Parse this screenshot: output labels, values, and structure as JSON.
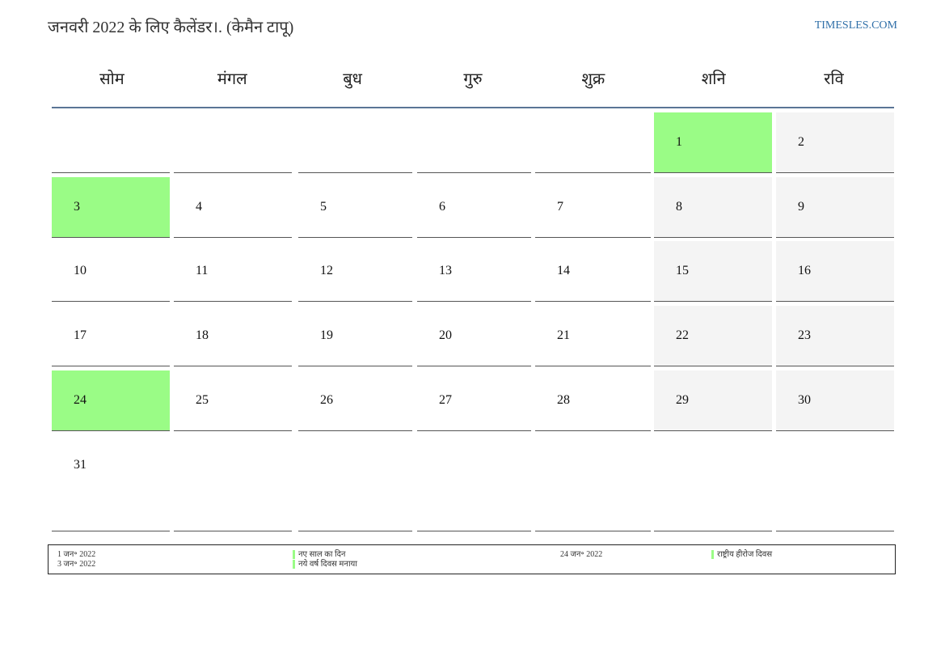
{
  "header": {
    "title": "जनवरी 2022 के लिए कैलेंडर।. (केमैन टापू)",
    "site": "TIMESLES.COM"
  },
  "weekdays": [
    "सोम",
    "मंगल",
    "बुध",
    "गुरु",
    "शुक्र",
    "शनि",
    "रवि"
  ],
  "weeks": [
    [
      "",
      "",
      "",
      "",
      "",
      "1",
      "2"
    ],
    [
      "3",
      "4",
      "5",
      "6",
      "7",
      "8",
      "9"
    ],
    [
      "10",
      "11",
      "12",
      "13",
      "14",
      "15",
      "16"
    ],
    [
      "17",
      "18",
      "19",
      "20",
      "21",
      "22",
      "23"
    ],
    [
      "24",
      "25",
      "26",
      "27",
      "28",
      "29",
      "30"
    ],
    [
      "31",
      "",
      "",
      "",
      "",
      "",
      ""
    ]
  ],
  "holiday_days": [
    "1",
    "3",
    "24"
  ],
  "colors": {
    "holiday": "#9afc86",
    "weekend": "#f4f4f4",
    "link": "#2f6fa8"
  },
  "legend": {
    "dates_left": [
      "1 जन॰ 2022",
      "3 जन॰ 2022"
    ],
    "names_left": [
      "नए साल का दिन",
      "नये वर्ष दिवस मनाया"
    ],
    "dates_right": [
      "24 जन॰ 2022"
    ],
    "names_right": [
      "राष्ट्रीय हीरोज दिवस"
    ]
  }
}
